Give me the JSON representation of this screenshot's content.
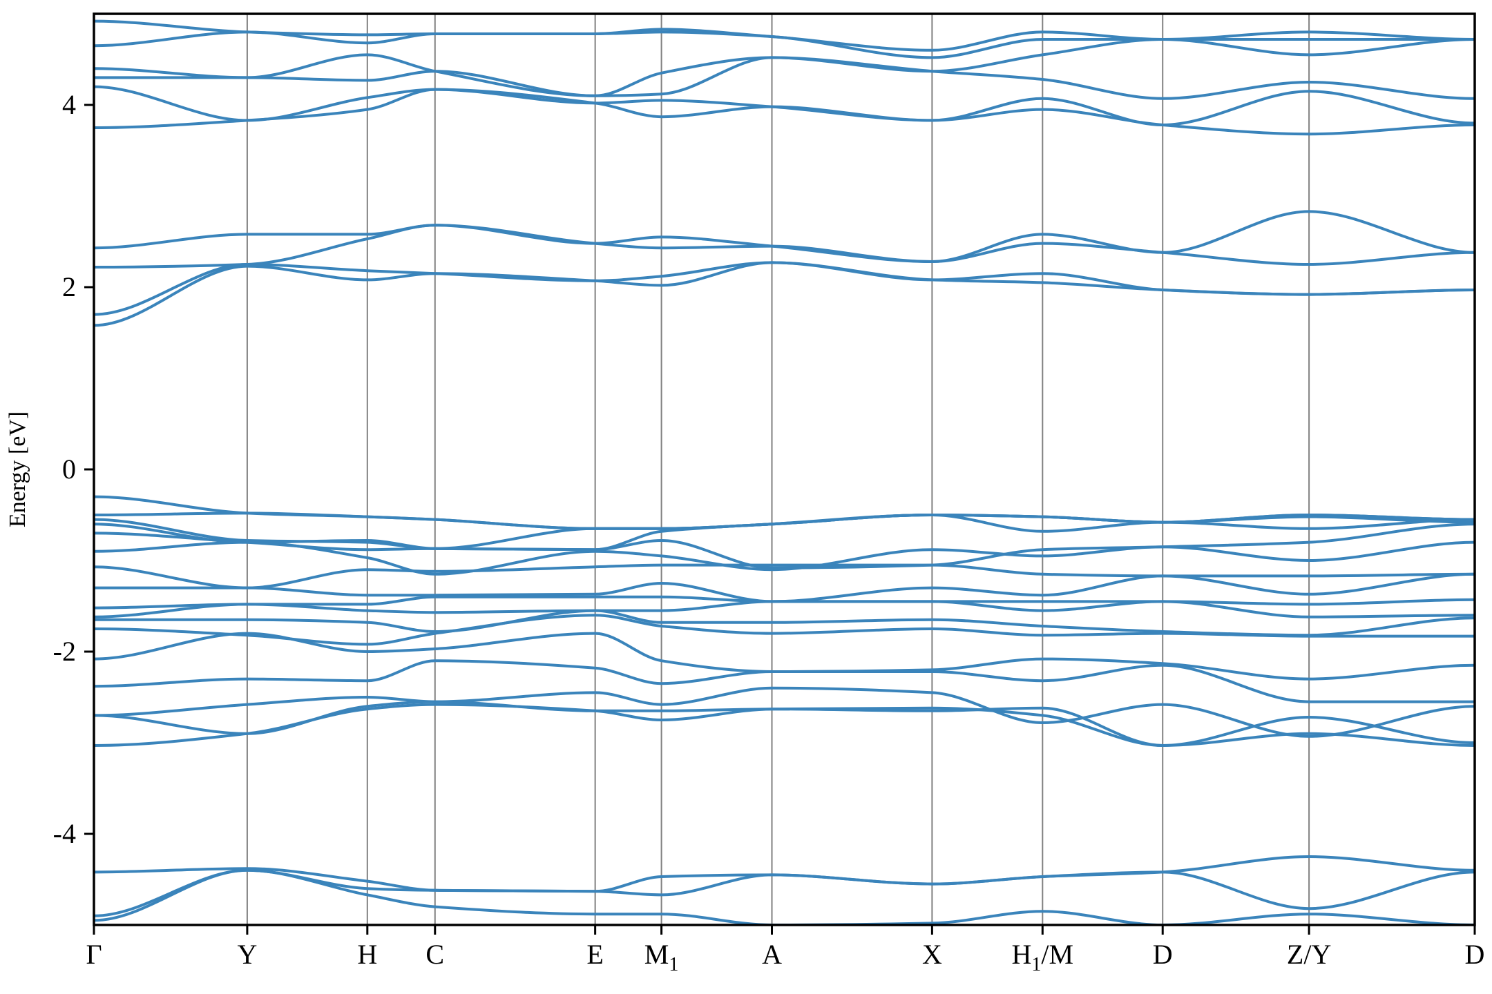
{
  "chart_data": {
    "type": "line",
    "ylabel": "Energy [eV]",
    "xlabel": "",
    "ylim": [
      -5,
      5
    ],
    "yticks": [
      -4,
      -2,
      0,
      2,
      4
    ],
    "yticklabels": [
      "-4",
      "-2",
      "0",
      "2",
      "4"
    ],
    "grid": false,
    "line_color": "#3a84bb",
    "kline_color": "#808080",
    "kpoints": [
      {
        "label": "Γ",
        "x": 0.0
      },
      {
        "label": "Y",
        "x": 0.111
      },
      {
        "label": "H",
        "x": 0.198
      },
      {
        "label": "C",
        "x": 0.247
      },
      {
        "label": "E",
        "x": 0.363
      },
      {
        "label": "M",
        "sub": "1",
        "x": 0.411
      },
      {
        "label": "A",
        "x": 0.491
      },
      {
        "label": "X",
        "x": 0.607
      },
      {
        "label": "H",
        "sub": "1",
        "suffix": "/M",
        "x": 0.687
      },
      {
        "label": "D",
        "x": 0.774
      },
      {
        "label": "Z/Y",
        "x": 0.88
      },
      {
        "label": "D",
        "x": 1.0
      }
    ],
    "bands": [
      {
        "name": "",
        "y": [
          -4.95,
          -4.4,
          -4.67,
          -4.8,
          -4.88,
          -4.88,
          -5.0,
          -4.98,
          -4.85,
          -5.0,
          -4.88,
          -5.0
        ]
      },
      {
        "name": "",
        "y": [
          -4.42,
          -4.38,
          -4.52,
          -4.62,
          -4.63,
          -4.47,
          -4.45,
          -4.55,
          -4.47,
          -4.42,
          -4.25,
          -4.4
        ]
      },
      {
        "name": "",
        "y": [
          -4.9,
          -4.4,
          -4.6,
          -4.62,
          -4.63,
          -4.67,
          -4.45,
          -4.55,
          -4.47,
          -4.42,
          -4.82,
          -4.42
        ]
      },
      {
        "name": "",
        "y": [
          -3.03,
          -2.9,
          -2.63,
          -2.58,
          -2.65,
          -2.75,
          -2.63,
          -2.62,
          -2.7,
          -3.03,
          -2.9,
          -3.03
        ]
      },
      {
        "name": "",
        "y": [
          -2.7,
          -2.9,
          -2.6,
          -2.55,
          -2.65,
          -2.65,
          -2.63,
          -2.65,
          -2.62,
          -3.03,
          -2.72,
          -3.0
        ]
      },
      {
        "name": "",
        "y": [
          -2.7,
          -2.58,
          -2.5,
          -2.55,
          -2.45,
          -2.58,
          -2.4,
          -2.45,
          -2.78,
          -2.58,
          -2.93,
          -2.6
        ]
      },
      {
        "name": "",
        "y": [
          -2.38,
          -2.3,
          -2.32,
          -2.1,
          -2.18,
          -2.35,
          -2.22,
          -2.22,
          -2.32,
          -2.15,
          -2.55,
          -2.55
        ]
      },
      {
        "name": "",
        "y": [
          -2.08,
          -1.8,
          -2.0,
          -1.97,
          -1.8,
          -2.1,
          -2.22,
          -2.2,
          -2.08,
          -2.13,
          -2.3,
          -2.15
        ]
      },
      {
        "name": "",
        "y": [
          -1.75,
          -1.82,
          -1.92,
          -1.8,
          -1.6,
          -1.72,
          -1.8,
          -1.75,
          -1.82,
          -1.8,
          -1.83,
          -1.83
        ]
      },
      {
        "name": "",
        "y": [
          -1.65,
          -1.65,
          -1.68,
          -1.78,
          -1.55,
          -1.68,
          -1.68,
          -1.65,
          -1.72,
          -1.78,
          -1.82,
          -1.63
        ]
      },
      {
        "name": "",
        "y": [
          -1.62,
          -1.48,
          -1.55,
          -1.57,
          -1.55,
          -1.55,
          -1.45,
          -1.45,
          -1.55,
          -1.45,
          -1.62,
          -1.6
        ]
      },
      {
        "name": "",
        "y": [
          -1.52,
          -1.48,
          -1.48,
          -1.4,
          -1.4,
          -1.4,
          -1.45,
          -1.45,
          -1.45,
          -1.45,
          -1.48,
          -1.43
        ]
      },
      {
        "name": "",
        "y": [
          -1.3,
          -1.3,
          -1.38,
          -1.38,
          -1.37,
          -1.25,
          -1.45,
          -1.3,
          -1.38,
          -1.17,
          -1.37,
          -1.15
        ]
      },
      {
        "name": "",
        "y": [
          -1.07,
          -1.3,
          -1.1,
          -1.12,
          -1.07,
          -1.05,
          -1.05,
          -1.05,
          -1.15,
          -1.17,
          -1.17,
          -1.15
        ]
      },
      {
        "name": "",
        "y": [
          -0.9,
          -0.8,
          -0.97,
          -1.15,
          -0.9,
          -0.95,
          -1.1,
          -0.88,
          -0.95,
          -0.85,
          -1.0,
          -0.8
        ]
      },
      {
        "name": "",
        "y": [
          -0.7,
          -0.8,
          -0.88,
          -0.87,
          -0.88,
          -0.78,
          -1.08,
          -1.05,
          -0.88,
          -0.85,
          -0.8,
          -0.6
        ]
      },
      {
        "name": "",
        "y": [
          -0.6,
          -0.8,
          -0.78,
          -0.87,
          -0.88,
          -0.68,
          -0.6,
          -0.5,
          -0.68,
          -0.58,
          -0.65,
          -0.55
        ]
      },
      {
        "name": "",
        "y": [
          -0.55,
          -0.78,
          -0.8,
          -0.87,
          -0.65,
          -0.65,
          -0.6,
          -0.5,
          -0.52,
          -0.58,
          -0.52,
          -0.58
        ]
      },
      {
        "name": "",
        "y": [
          -0.5,
          -0.48,
          -0.52,
          -0.55,
          -0.65,
          -0.65,
          -0.6,
          -0.5,
          -0.52,
          -0.58,
          -0.5,
          -0.55
        ]
      },
      {
        "name": "",
        "y": [
          -0.3,
          -0.48,
          -0.52,
          -0.55,
          -0.65,
          -0.65,
          -0.6,
          -0.5,
          -0.52,
          -0.58,
          -0.5,
          -0.55
        ]
      },
      {
        "name": "",
        "y": [
          1.58,
          2.23,
          2.08,
          2.15,
          2.07,
          2.02,
          2.27,
          2.08,
          2.05,
          1.97,
          1.92,
          1.97
        ]
      },
      {
        "name": "",
        "y": [
          1.7,
          2.25,
          2.18,
          2.15,
          2.07,
          2.12,
          2.27,
          2.08,
          2.15,
          1.97,
          1.92,
          1.97
        ]
      },
      {
        "name": "",
        "y": [
          2.22,
          2.25,
          2.53,
          2.68,
          2.48,
          2.43,
          2.45,
          2.28,
          2.48,
          2.38,
          2.25,
          2.38
        ]
      },
      {
        "name": "",
        "y": [
          2.43,
          2.58,
          2.58,
          2.68,
          2.48,
          2.55,
          2.45,
          2.28,
          2.58,
          2.38,
          2.83,
          2.38
        ]
      },
      {
        "name": "",
        "y": [
          3.75,
          3.83,
          3.95,
          4.17,
          4.02,
          3.87,
          3.98,
          3.83,
          3.95,
          3.78,
          3.68,
          3.78
        ]
      },
      {
        "name": "",
        "y": [
          4.2,
          3.83,
          4.08,
          4.17,
          4.02,
          4.05,
          3.98,
          3.83,
          4.07,
          3.78,
          4.15,
          3.8
        ]
      },
      {
        "name": "",
        "y": [
          4.3,
          4.3,
          4.27,
          4.37,
          4.1,
          4.12,
          4.52,
          4.37,
          4.28,
          4.07,
          4.25,
          4.07
        ]
      },
      {
        "name": "",
        "y": [
          4.4,
          4.3,
          4.55,
          4.37,
          4.1,
          4.35,
          4.52,
          4.37,
          4.55,
          4.72,
          4.55,
          4.72
        ]
      },
      {
        "name": "",
        "y": [
          4.65,
          4.8,
          4.68,
          4.78,
          4.78,
          4.8,
          4.75,
          4.52,
          4.72,
          4.72,
          4.72,
          4.72
        ]
      },
      {
        "name": "",
        "y": [
          4.92,
          4.8,
          4.77,
          4.78,
          4.78,
          4.83,
          4.75,
          4.6,
          4.8,
          4.72,
          4.8,
          4.72
        ]
      }
    ]
  }
}
